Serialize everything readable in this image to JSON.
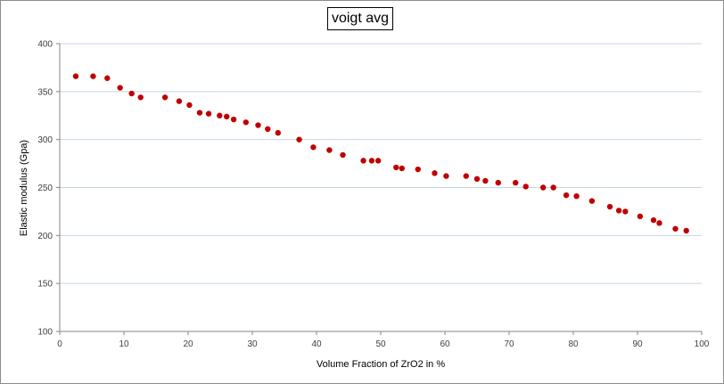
{
  "chart_data": {
    "type": "scatter",
    "title": "voigt avg",
    "xlabel": "Volume Fraction of ZrO2 in %",
    "ylabel": "Elastic modulus (Gpa)",
    "xlim": [
      0,
      100
    ],
    "ylim": [
      100,
      400
    ],
    "x_ticks": [
      "0",
      "10",
      "20",
      "30",
      "40",
      "50",
      "60",
      "70",
      "80",
      "90",
      "100"
    ],
    "y_ticks": [
      "100",
      "150",
      "200",
      "250",
      "300",
      "350",
      "400"
    ],
    "grid": "horizontal",
    "legend": "none",
    "marker_color": "#c00000",
    "gridline_color": "#c5d5e4",
    "series": [
      {
        "points": [
          [
            2.5,
            366
          ],
          [
            5.2,
            366
          ],
          [
            7.4,
            364
          ],
          [
            9.4,
            354
          ],
          [
            11.2,
            348
          ],
          [
            12.6,
            344
          ],
          [
            16.4,
            344
          ],
          [
            18.6,
            340
          ],
          [
            20.2,
            336
          ],
          [
            21.8,
            328
          ],
          [
            23.2,
            327
          ],
          [
            24.9,
            325
          ],
          [
            26.0,
            324
          ],
          [
            27.1,
            321
          ],
          [
            29.0,
            318
          ],
          [
            30.9,
            315
          ],
          [
            32.4,
            311
          ],
          [
            34.0,
            307
          ],
          [
            37.3,
            300
          ],
          [
            39.5,
            292
          ],
          [
            42.0,
            289
          ],
          [
            44.1,
            284
          ],
          [
            47.3,
            278
          ],
          [
            48.6,
            278
          ],
          [
            49.6,
            278
          ],
          [
            52.4,
            271
          ],
          [
            53.3,
            270
          ],
          [
            55.8,
            269
          ],
          [
            58.4,
            265
          ],
          [
            60.2,
            262
          ],
          [
            63.3,
            262
          ],
          [
            65.0,
            259
          ],
          [
            66.3,
            257
          ],
          [
            68.3,
            255
          ],
          [
            71.0,
            255
          ],
          [
            72.6,
            251
          ],
          [
            75.3,
            250
          ],
          [
            76.9,
            250
          ],
          [
            78.9,
            242
          ],
          [
            80.5,
            241
          ],
          [
            82.9,
            236
          ],
          [
            85.7,
            230
          ],
          [
            87.1,
            226
          ],
          [
            88.1,
            225
          ],
          [
            90.4,
            220
          ],
          [
            92.5,
            216
          ],
          [
            93.4,
            213
          ],
          [
            95.9,
            207
          ],
          [
            97.6,
            205
          ]
        ]
      }
    ]
  }
}
